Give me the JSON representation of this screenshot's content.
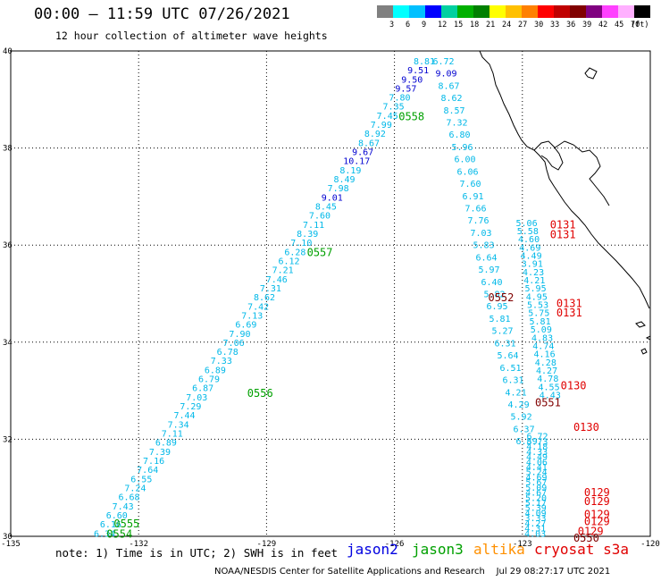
{
  "header": {
    "title": "00:00 — 11:59 UTC 07/26/2021",
    "subtitle": "12 hour collection of altimeter wave heights"
  },
  "colorbar": {
    "unit": "(ft)",
    "entries": [
      {
        "color": "#808080",
        "label": "3"
      },
      {
        "color": "#00ffff",
        "label": "6"
      },
      {
        "color": "#00c0ff",
        "label": "9"
      },
      {
        "color": "#0000ff",
        "label": "12"
      },
      {
        "color": "#00d0a0",
        "label": "15"
      },
      {
        "color": "#00b000",
        "label": "18"
      },
      {
        "color": "#008000",
        "label": "21"
      },
      {
        "color": "#ffff00",
        "label": "24"
      },
      {
        "color": "#ffc000",
        "label": "27"
      },
      {
        "color": "#ff8000",
        "label": "30"
      },
      {
        "color": "#ff0000",
        "label": "33"
      },
      {
        "color": "#c00000",
        "label": "36"
      },
      {
        "color": "#800000",
        "label": "39"
      },
      {
        "color": "#800080",
        "label": "42"
      },
      {
        "color": "#ff40ff",
        "label": "45"
      },
      {
        "color": "#ffb0ff",
        "label": "70"
      },
      {
        "color": "#000000",
        "label": ""
      }
    ]
  },
  "map": {
    "lon_range": [
      -135,
      -120
    ],
    "lat_range": [
      30,
      40
    ],
    "lon_ticks": [
      {
        "v": -135,
        "t": "-135"
      },
      {
        "v": -132,
        "t": "-132"
      },
      {
        "v": -129,
        "t": "-129"
      },
      {
        "v": -126,
        "t": "-126"
      },
      {
        "v": -123,
        "t": "-123"
      },
      {
        "v": -120,
        "t": "-120"
      }
    ],
    "lat_ticks": [
      {
        "v": 40,
        "t": "40"
      },
      {
        "v": 38,
        "t": "38"
      },
      {
        "v": 36,
        "t": "36"
      },
      {
        "v": 34,
        "t": "34"
      },
      {
        "v": 32,
        "t": "32"
      },
      {
        "v": 30,
        "t": "30"
      }
    ]
  },
  "tracks": {
    "jason3_west": {
      "color": "#00b8e8",
      "label_color": "#00a000",
      "values": [
        "6.34",
        "6.16",
        "6.60",
        "7.43",
        "6.68",
        "7.24",
        "6.55",
        "7.64",
        "7.16",
        "7.39",
        "6.89",
        "7.11",
        "7.34",
        "7.44",
        "7.29",
        "7.03",
        "6.87",
        "6.79",
        "6.89",
        "7.33",
        "6.78",
        "7.06",
        "7.90",
        "6.69",
        "7.13",
        "7.42",
        "8.62",
        "7.31",
        "7.46",
        "7.21",
        "6.12",
        "6.28",
        "7.10",
        "8.39",
        "7.11",
        "7.60",
        "8.45",
        "9.01",
        "7.98",
        "8.49",
        "8.19",
        "10.17",
        "9.67",
        "8.67",
        "8.92",
        "7.99",
        "7.45",
        "7.35",
        "7.80",
        "9.57",
        "9.50",
        "9.51",
        "8.81"
      ],
      "blue": [
        "9.01",
        "10.17",
        "9.67",
        "9.57",
        "9.50",
        "9.51"
      ],
      "times": [
        {
          "t": "0555",
          "lon": -132.28,
          "lat": 30.26
        },
        {
          "t": "0554",
          "lon": -132.45,
          "lat": 30.05
        },
        {
          "t": "0556",
          "lon": -129.15,
          "lat": 32.95
        },
        {
          "t": "0557",
          "lon": -127.75,
          "lat": 35.85
        },
        {
          "t": "0558",
          "lon": -125.6,
          "lat": 38.65
        }
      ]
    },
    "jason3_east": {
      "color": "#00b8e8",
      "values": [
        "6.72",
        "9.09",
        "8.67",
        "8.62",
        "8.57",
        "7.32",
        "6.80",
        "5.96",
        "6.00",
        "6.06",
        "7.60",
        "6.91",
        "7.66",
        "7.76",
        "7.03",
        "5.83",
        "6.64",
        "5.97",
        "6.40",
        "5.82",
        "6.95",
        "5.81",
        "5.27",
        "6.31",
        "5.64",
        "6.51",
        "6.31",
        "4.21",
        "4.29",
        "5.92",
        "6.37",
        "6.89"
      ],
      "blue": [
        "9.09"
      ]
    },
    "altika": {
      "color": "#00b8e8",
      "values": [
        "6.72",
        "5.73",
        "4.18",
        "4.33",
        "4.49",
        "4.06",
        "4.41",
        "5.24",
        "4.69",
        "5.67",
        "5.09",
        "4.67",
        "5.20",
        "5.17",
        "5.39",
        "4.09",
        "3.33",
        "4.27",
        "4.31",
        "4.03"
      ],
      "blue": []
    },
    "cryosat": {
      "color": "#00b8e8",
      "values": [
        "5.06",
        "5.58",
        "4.60",
        "4.69",
        "4.49",
        "3.91",
        "4.23",
        "4.21",
        "5.95",
        "4.95",
        "5.53",
        "5.75",
        "5.81",
        "5.09",
        "4.83",
        "4.74",
        "4.16",
        "4.28",
        "4.27",
        "4.78",
        "4.55",
        "4.43"
      ],
      "blue": []
    }
  },
  "time_labels_red": [
    {
      "t": "0131",
      "lon": -122.05,
      "lat": 36.42,
      "c": "#e00000"
    },
    {
      "t": "0131",
      "lon": -122.05,
      "lat": 36.22,
      "c": "#e00000"
    },
    {
      "t": "0131",
      "lon": -121.9,
      "lat": 34.8,
      "c": "#e00000"
    },
    {
      "t": "0131",
      "lon": -121.9,
      "lat": 34.6,
      "c": "#e00000"
    },
    {
      "t": "0552",
      "lon": -123.5,
      "lat": 34.92,
      "c": "#800000"
    },
    {
      "t": "0130",
      "lon": -121.8,
      "lat": 33.1,
      "c": "#e00000"
    },
    {
      "t": "0551",
      "lon": -122.4,
      "lat": 32.75,
      "c": "#800000"
    },
    {
      "t": "0130",
      "lon": -121.5,
      "lat": 32.25,
      "c": "#e00000"
    },
    {
      "t": "0129",
      "lon": -121.25,
      "lat": 30.9,
      "c": "#e00000"
    },
    {
      "t": "0129",
      "lon": -121.25,
      "lat": 30.72,
      "c": "#e00000"
    },
    {
      "t": "0129",
      "lon": -121.25,
      "lat": 30.45,
      "c": "#e00000"
    },
    {
      "t": "0129",
      "lon": -121.25,
      "lat": 30.3,
      "c": "#e00000"
    },
    {
      "t": "0129",
      "lon": -121.4,
      "lat": 30.1,
      "c": "#e00000"
    },
    {
      "t": "0550",
      "lon": -121.5,
      "lat": 29.96,
      "c": "#800000"
    }
  ],
  "footer": {
    "note": "note: 1) Time is in UTC; 2) SWH is in feet",
    "satellites": [
      {
        "name": "jason2",
        "color": "#0000e0",
        "left": 388
      },
      {
        "name": "jason3",
        "color": "#00a000",
        "left": 461
      },
      {
        "name": "altika",
        "color": "#ff9000",
        "left": 530
      },
      {
        "name": "cryosat s3a",
        "color": "#e00000",
        "left": 598
      }
    ],
    "credit": "NOAA/NESDIS Center for Satellite Applications and Research    Jul 29 08:27:17 UTC 2021"
  }
}
